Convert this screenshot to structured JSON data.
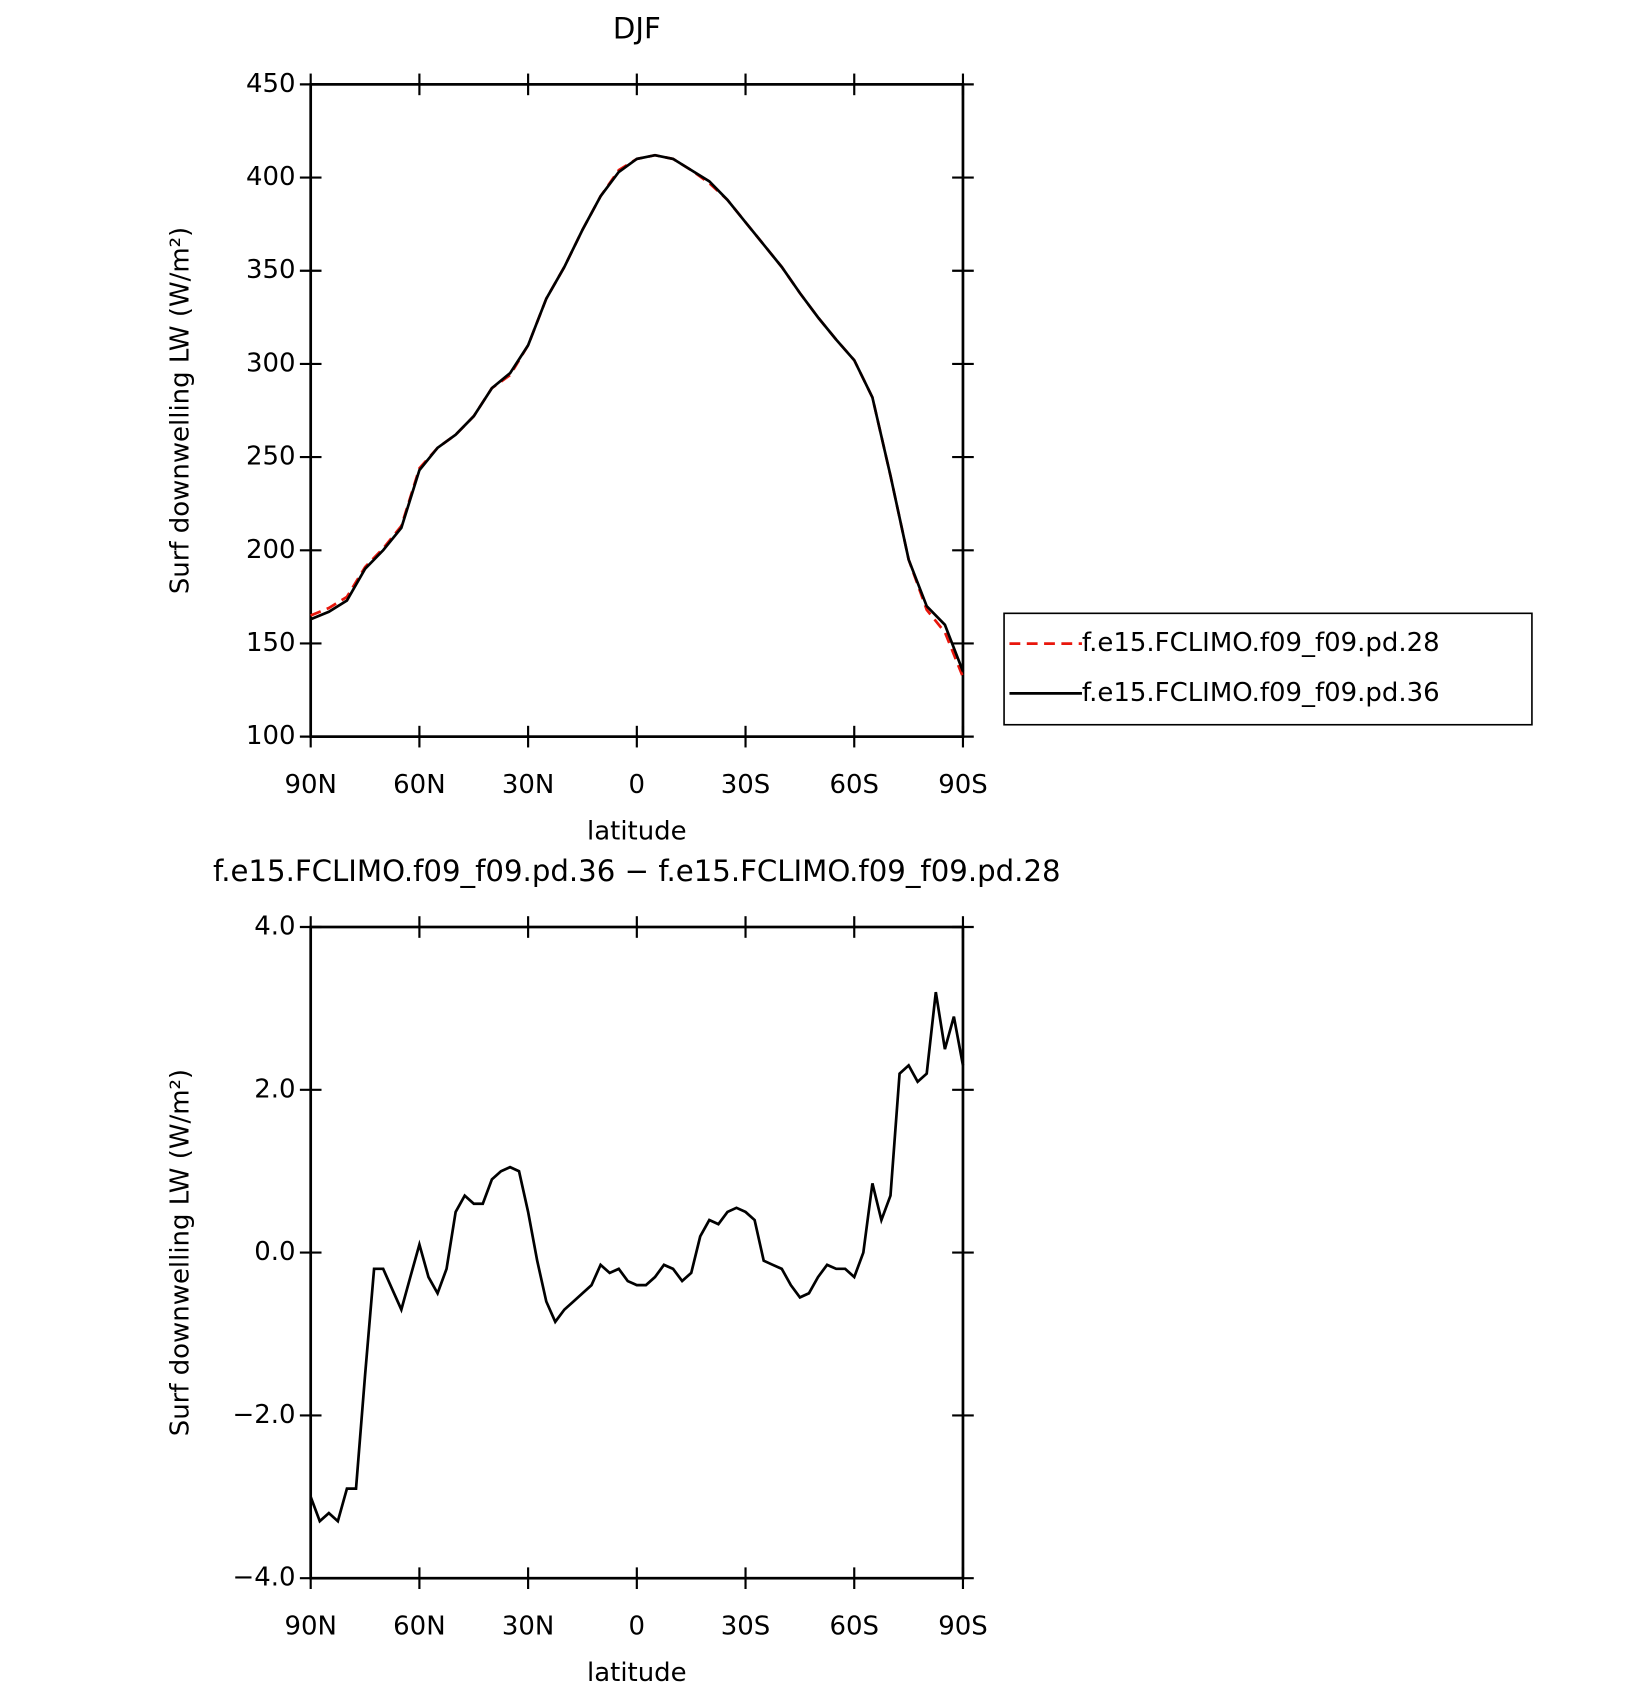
{
  "chart_data": [
    {
      "type": "line",
      "title": "DJF",
      "xlabel": "latitude",
      "ylabel": "Surf downwelling LW (W/m²)",
      "x": [
        90,
        85,
        80,
        75,
        70,
        65,
        60,
        55,
        50,
        45,
        40,
        35,
        30,
        25,
        20,
        15,
        10,
        5,
        0,
        -5,
        -10,
        -15,
        -20,
        -25,
        -30,
        -35,
        -40,
        -45,
        -50,
        -55,
        -60,
        -65,
        -70,
        -75,
        -80,
        -85,
        -90
      ],
      "series": [
        {
          "name": "f.e15.FCLIMO.f09_f09.pd.28",
          "color": "#e8160c",
          "line_style": "dashed",
          "values": [
            165,
            169,
            175,
            191,
            201,
            213,
            244,
            255,
            262,
            272,
            287,
            294,
            310,
            335,
            352,
            372,
            390,
            404,
            410,
            412,
            410,
            404,
            397,
            388,
            376,
            364,
            352,
            338,
            325,
            313,
            302,
            282,
            240,
            195,
            168,
            156,
            132
          ]
        },
        {
          "name": "f.e15.FCLIMO.f09_f09.pd.36",
          "color": "#000000",
          "line_style": "solid",
          "values": [
            163,
            167,
            173,
            190,
            200,
            212,
            243,
            255,
            262,
            272,
            287,
            295,
            310,
            335,
            352,
            372,
            390,
            403,
            410,
            412,
            410,
            404,
            398,
            388,
            376,
            364,
            352,
            338,
            325,
            313,
            302,
            282,
            240,
            195,
            170,
            160,
            135
          ]
        }
      ],
      "xlim": [
        90,
        -90
      ],
      "xticks": [
        {
          "value": 90,
          "label": "90N"
        },
        {
          "value": 60,
          "label": "60N"
        },
        {
          "value": 30,
          "label": "30N"
        },
        0,
        {
          "value": -30,
          "label": "30S"
        },
        {
          "value": -60,
          "label": "60S"
        },
        {
          "value": -90,
          "label": "90S"
        }
      ],
      "ylim": [
        100,
        450
      ],
      "yticks": [
        100,
        150,
        200,
        250,
        300,
        350,
        400,
        450
      ],
      "legend": "right"
    },
    {
      "type": "line",
      "title": "f.e15.FCLIMO.f09_f09.pd.36 − f.e15.FCLIMO.f09_f09.pd.28",
      "xlabel": "latitude",
      "ylabel": "Surf downwelling LW (W/m²)",
      "x": [
        90,
        87.5,
        85,
        82.5,
        80,
        77.5,
        75,
        72.5,
        70,
        67.5,
        65,
        62.5,
        60,
        57.5,
        55,
        52.5,
        50,
        47.5,
        45,
        42.5,
        40,
        37.5,
        35,
        32.5,
        30,
        27.5,
        25,
        22.5,
        20,
        17.5,
        15,
        12.5,
        10,
        7.5,
        5,
        2.5,
        0,
        -2.5,
        -5,
        -7.5,
        -10,
        -12.5,
        -15,
        -17.5,
        -20,
        -22.5,
        -25,
        -27.5,
        -30,
        -32.5,
        -35,
        -37.5,
        -40,
        -42.5,
        -45,
        -47.5,
        -50,
        -52.5,
        -55,
        -57.5,
        -60,
        -62.5,
        -65,
        -67.5,
        -70,
        -72.5,
        -75,
        -77.5,
        -80,
        -82.5,
        -85,
        -87.5,
        -90
      ],
      "series": [
        {
          "color": "#000000",
          "line_style": "solid",
          "values": [
            -3.0,
            -3.3,
            -3.2,
            -3.3,
            -2.9,
            -2.9,
            -1.5,
            -0.2,
            -0.2,
            -0.45,
            -0.7,
            -0.3,
            0.1,
            -0.3,
            -0.5,
            -0.2,
            0.5,
            0.7,
            0.6,
            0.6,
            0.9,
            1.0,
            1.05,
            1.0,
            0.5,
            -0.1,
            -0.6,
            -0.85,
            -0.7,
            -0.6,
            -0.5,
            -0.4,
            -0.15,
            -0.25,
            -0.2,
            -0.35,
            -0.4,
            -0.4,
            -0.3,
            -0.15,
            -0.2,
            -0.35,
            -0.25,
            0.2,
            0.4,
            0.35,
            0.5,
            0.55,
            0.5,
            0.4,
            -0.1,
            -0.15,
            -0.2,
            -0.4,
            -0.55,
            -0.5,
            -0.3,
            -0.15,
            -0.2,
            -0.2,
            -0.3,
            0.0,
            0.85,
            0.4,
            0.7,
            2.2,
            2.3,
            2.1,
            2.2,
            3.2,
            2.5,
            2.9,
            2.3
          ]
        }
      ],
      "xlim": [
        90,
        -90
      ],
      "xticks": [
        {
          "value": 90,
          "label": "90N"
        },
        {
          "value": 60,
          "label": "60N"
        },
        {
          "value": 30,
          "label": "30N"
        },
        0,
        {
          "value": -30,
          "label": "30S"
        },
        {
          "value": -60,
          "label": "60S"
        },
        {
          "value": -90,
          "label": "90S"
        }
      ],
      "ylim": [
        -4,
        4
      ],
      "yticks": [
        {
          "value": -4,
          "label": "−4.0"
        },
        {
          "value": -2,
          "label": "−2.0"
        },
        {
          "value": 0,
          "label": "0.0"
        },
        {
          "value": 2,
          "label": "2.0"
        },
        {
          "value": 4,
          "label": "4.0"
        }
      ]
    }
  ]
}
